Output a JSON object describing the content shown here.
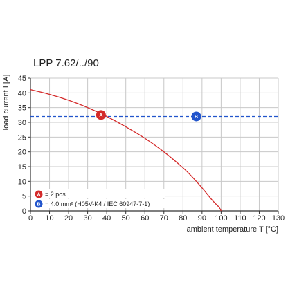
{
  "chart_data": {
    "type": "line",
    "title": "LPP 7.62/../90",
    "xlabel": "ambient temperature T [°C]",
    "ylabel": "load current I [A]",
    "xlim": [
      0,
      130
    ],
    "ylim": [
      0,
      45
    ],
    "grid": true,
    "x_ticks": [
      "0",
      "10",
      "20",
      "30",
      "40",
      "50",
      "60",
      "70",
      "80",
      "90",
      "100",
      "110",
      "120",
      "130"
    ],
    "y_ticks": [
      "0",
      "5",
      "10",
      "15",
      "20",
      "25",
      "30",
      "35",
      "40",
      "45"
    ],
    "series": [
      {
        "name": "A",
        "style": "solid",
        "color": "#d42a2a",
        "x": [
          0,
          10,
          20,
          30,
          40,
          50,
          60,
          70,
          80,
          85,
          90,
          95,
          97,
          99,
          100
        ],
        "y": [
          41.1,
          39.5,
          37.5,
          35,
          32,
          28.5,
          24.6,
          20,
          14.6,
          11.4,
          7.8,
          3.9,
          2.5,
          1.2,
          0
        ]
      },
      {
        "name": "B",
        "style": "dashed",
        "color": "#2255cc",
        "x": [
          0,
          130
        ],
        "y": [
          32,
          32
        ]
      }
    ],
    "markers": [
      {
        "label": "A",
        "x": 37,
        "y": 32.5,
        "color": "#d42a2a"
      },
      {
        "label": "B",
        "x": 87,
        "y": 32,
        "color": "#2255cc"
      }
    ],
    "legend": {
      "placement": "bottom-left",
      "entries": [
        {
          "marker": "A",
          "color": "#d42a2a",
          "text": "= 2 pos."
        },
        {
          "marker": "B",
          "color": "#2255cc",
          "text": "= 4.0 mm² (H05V-K4 / IEC 60947-7-1)"
        }
      ]
    }
  }
}
